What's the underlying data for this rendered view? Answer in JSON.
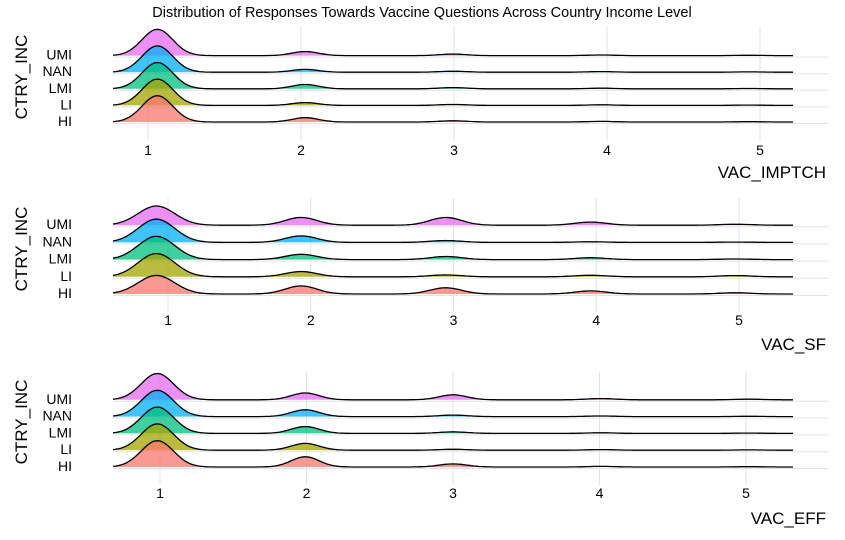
{
  "title": "Distribution of Responses Towards Vaccine Questions Across Country Income Level",
  "colors": {
    "HI": "#F8766D",
    "LI": "#A3A500",
    "LMI": "#00BF7D",
    "NAN": "#00B0F6",
    "UMI": "#E76BF3",
    "grid": "#e3e3e3",
    "outline": "#000000"
  },
  "chart_data": [
    {
      "type": "ridgeline",
      "xlabel": "VAC_IMPTCH",
      "ylabel": "CTRY_INC",
      "categories": [
        "HI",
        "LI",
        "LMI",
        "NAN",
        "UMI"
      ],
      "x_ticks": [
        1,
        2,
        3,
        4,
        5
      ],
      "xlim": [
        0.7,
        5.3
      ],
      "grid": true,
      "series": [
        {
          "name": "HI",
          "density": [
            0.85,
            0.14,
            0.04,
            0.02,
            0.01
          ]
        },
        {
          "name": "LI",
          "density": [
            0.85,
            0.09,
            0.03,
            0.02,
            0.01
          ]
        },
        {
          "name": "LMI",
          "density": [
            0.85,
            0.14,
            0.04,
            0.02,
            0.01
          ]
        },
        {
          "name": "NAN",
          "density": [
            0.85,
            0.09,
            0.03,
            0.02,
            0.01
          ]
        },
        {
          "name": "UMI",
          "density": [
            0.85,
            0.13,
            0.05,
            0.02,
            0.01
          ]
        }
      ]
    },
    {
      "type": "ridgeline",
      "xlabel": "VAC_SF",
      "ylabel": "CTRY_INC",
      "categories": [
        "HI",
        "LI",
        "LMI",
        "NAN",
        "UMI"
      ],
      "x_ticks": [
        1,
        2,
        3,
        4,
        5
      ],
      "xlim": [
        0.7,
        5.4
      ],
      "grid": true,
      "series": [
        {
          "name": "HI",
          "density": [
            0.6,
            0.26,
            0.2,
            0.1,
            0.04
          ]
        },
        {
          "name": "LI",
          "density": [
            0.75,
            0.17,
            0.06,
            0.05,
            0.04
          ]
        },
        {
          "name": "LMI",
          "density": [
            0.75,
            0.17,
            0.1,
            0.06,
            0.02
          ]
        },
        {
          "name": "NAN",
          "density": [
            0.75,
            0.21,
            0.06,
            0.02,
            0.01
          ]
        },
        {
          "name": "UMI",
          "density": [
            0.62,
            0.25,
            0.25,
            0.1,
            0.03
          ]
        }
      ]
    },
    {
      "type": "ridgeline",
      "xlabel": "VAC_EFF",
      "ylabel": "CTRY_INC",
      "categories": [
        "HI",
        "LI",
        "LMI",
        "NAN",
        "UMI"
      ],
      "x_ticks": [
        1,
        2,
        3,
        4,
        5
      ],
      "xlim": [
        0.7,
        5.3
      ],
      "grid": true,
      "series": [
        {
          "name": "HI",
          "density": [
            0.85,
            0.33,
            0.1,
            0.02,
            0.01
          ]
        },
        {
          "name": "LI",
          "density": [
            0.85,
            0.22,
            0.03,
            0.02,
            0.01
          ]
        },
        {
          "name": "LMI",
          "density": [
            0.85,
            0.22,
            0.05,
            0.02,
            0.01
          ]
        },
        {
          "name": "NAN",
          "density": [
            0.85,
            0.22,
            0.05,
            0.02,
            0.01
          ]
        },
        {
          "name": "UMI",
          "density": [
            0.85,
            0.22,
            0.16,
            0.04,
            0.02
          ]
        }
      ]
    }
  ]
}
